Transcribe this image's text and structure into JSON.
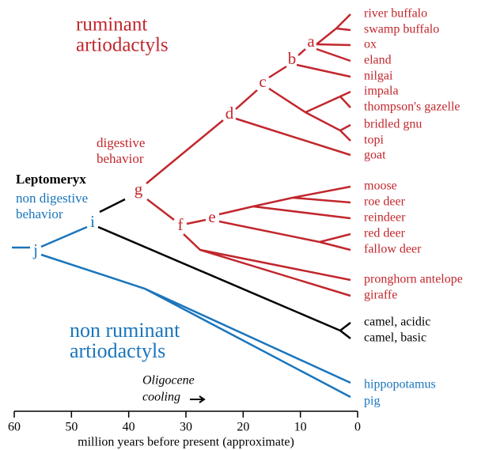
{
  "title": {
    "line1": "ruminant",
    "line2": "artiodactyls"
  },
  "subtitle": {
    "line1": "non ruminant",
    "line2": "artiodactyls"
  },
  "annotations": {
    "digestive1": "digestive",
    "digestive2": "behavior",
    "leptomeryx": "Leptomeryx",
    "nondigestive1": "non digestive",
    "nondigestive2": "behavior",
    "cooling1": "Oligocene",
    "cooling2": "cooling"
  },
  "nodes": [
    "j",
    "i",
    "g",
    "f",
    "e",
    "d",
    "c",
    "b",
    "a"
  ],
  "leaves": [
    {
      "label": "river buffalo",
      "color": "#c1272d"
    },
    {
      "label": "swamp buffalo",
      "color": "#c1272d"
    },
    {
      "label": "ox",
      "color": "#c1272d"
    },
    {
      "label": "eland",
      "color": "#c1272d"
    },
    {
      "label": "nilgai",
      "color": "#c1272d"
    },
    {
      "label": "impala",
      "color": "#c1272d"
    },
    {
      "label": "thompson's gazelle",
      "color": "#c1272d"
    },
    {
      "label": "bridled gnu",
      "color": "#c1272d"
    },
    {
      "label": "topi",
      "color": "#c1272d"
    },
    {
      "label": "goat",
      "color": "#c1272d"
    },
    {
      "label": "moose",
      "color": "#c1272d"
    },
    {
      "label": "roe deer",
      "color": "#c1272d"
    },
    {
      "label": "reindeer",
      "color": "#c1272d"
    },
    {
      "label": "red deer",
      "color": "#c1272d"
    },
    {
      "label": "fallow deer",
      "color": "#c1272d"
    },
    {
      "label": "pronghorn antelope",
      "color": "#c1272d"
    },
    {
      "label": "giraffe",
      "color": "#c1272d"
    },
    {
      "label": "camel, acidic",
      "color": "#000000"
    },
    {
      "label": "camel, basic",
      "color": "#000000"
    },
    {
      "label": "hippopotamus",
      "color": "#1a75bc"
    },
    {
      "label": "pig",
      "color": "#1a75bc"
    }
  ],
  "axis": {
    "label": "million years before present (approximate)",
    "xlim": [
      60,
      0
    ],
    "ticks": [
      60,
      50,
      40,
      30,
      20,
      10,
      0
    ]
  }
}
